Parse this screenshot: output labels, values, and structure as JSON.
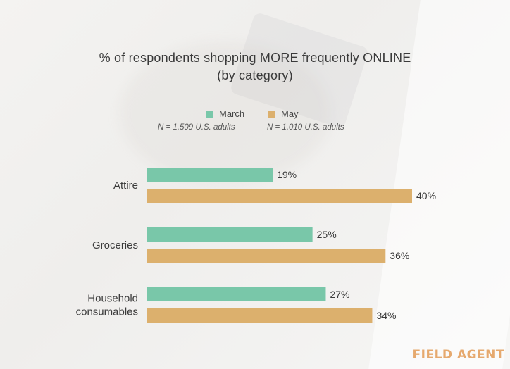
{
  "chart_data": {
    "type": "bar",
    "orientation": "horizontal",
    "title": "% of respondents shopping MORE frequently ONLINE (by category)",
    "title_lines": [
      "% of respondents shopping MORE frequently ONLINE",
      "(by category)"
    ],
    "categories": [
      "Attire",
      "Groceries",
      "Household consumables"
    ],
    "category_lines": [
      [
        "Attire"
      ],
      [
        "Groceries"
      ],
      [
        "Household",
        "consumables"
      ]
    ],
    "series": [
      {
        "name": "March",
        "note": "N = 1,509 U.S. adults",
        "color": "#79c7a9",
        "values": [
          19,
          25,
          27
        ],
        "labels": [
          "19%",
          "25%",
          "27%"
        ]
      },
      {
        "name": "May",
        "note": "N = 1,010 U.S. adults",
        "color": "#dcb06d",
        "values": [
          40,
          36,
          34
        ],
        "labels": [
          "40%",
          "36%",
          "34%"
        ]
      }
    ],
    "xlim": [
      0,
      40
    ],
    "legend_position": "top",
    "grid": false
  },
  "brand": "FIELD AGENT"
}
